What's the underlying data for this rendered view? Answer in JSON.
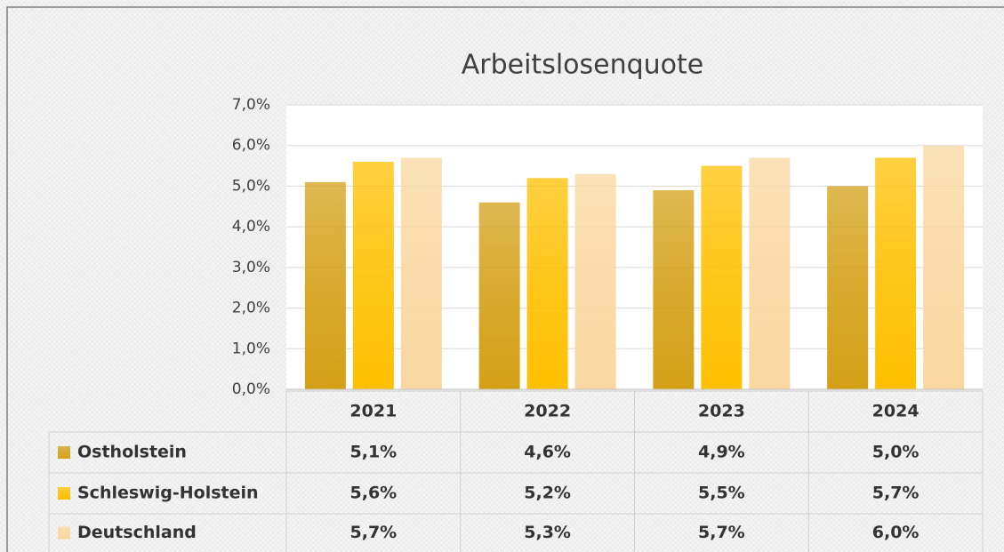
{
  "chart_data": {
    "type": "bar",
    "title": "Arbeitslosenquote",
    "categories": [
      "2021",
      "2022",
      "2023",
      "2024"
    ],
    "series": [
      {
        "name": "Ostholstein",
        "color": "#d4a017",
        "values": [
          5.1,
          4.6,
          4.9,
          5.0
        ],
        "value_labels": [
          "5,1%",
          "4,6%",
          "4,9%",
          "5,0%"
        ]
      },
      {
        "name": "Schleswig-Holstein",
        "color": "#ffc000",
        "values": [
          5.6,
          5.2,
          5.5,
          5.7
        ],
        "value_labels": [
          "5,6%",
          "5,2%",
          "5,5%",
          "5,7%"
        ]
      },
      {
        "name": "Deutschland",
        "color": "#fad7a0",
        "values": [
          5.7,
          5.3,
          5.7,
          6.0
        ],
        "value_labels": [
          "5,7%",
          "5,3%",
          "5,7%",
          "6,0%"
        ]
      }
    ],
    "ylim": [
      0,
      7
    ],
    "yticks": [
      {
        "value": 0,
        "label": "0,0%"
      },
      {
        "value": 1,
        "label": "1,0%"
      },
      {
        "value": 2,
        "label": "2,0%"
      },
      {
        "value": 3,
        "label": "3,0%"
      },
      {
        "value": 4,
        "label": "4,0%"
      },
      {
        "value": 5,
        "label": "5,0%"
      },
      {
        "value": 6,
        "label": "6,0%"
      },
      {
        "value": 7,
        "label": "7,0%"
      }
    ],
    "grid": true
  }
}
